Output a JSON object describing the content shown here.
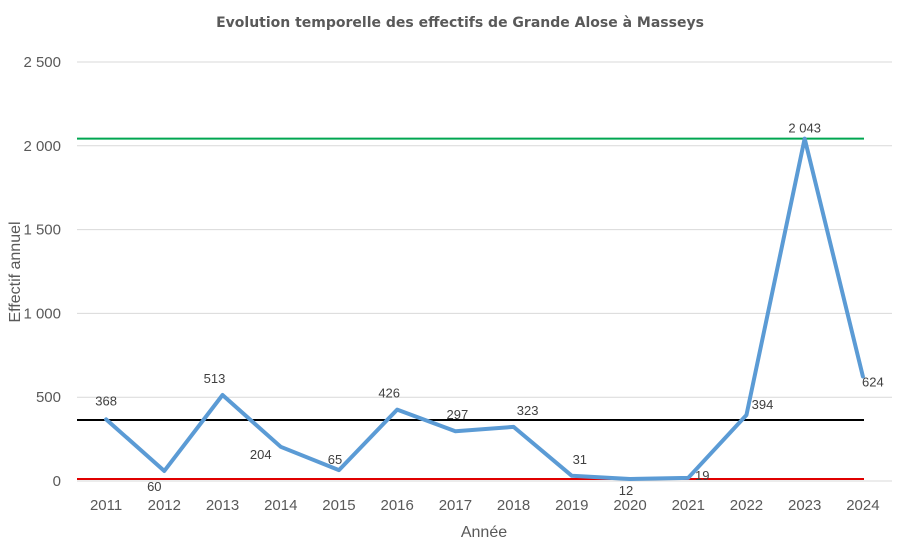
{
  "chart_data": {
    "type": "line",
    "title": "Evolution temporelle des effectifs de Grande Alose à Masseys",
    "xlabel": "Année",
    "ylabel": "Effectif annuel",
    "categories": [
      "2011",
      "2012",
      "2013",
      "2014",
      "2015",
      "2016",
      "2017",
      "2018",
      "2019",
      "2020",
      "2021",
      "2022",
      "2023",
      "2024"
    ],
    "ylim": [
      0,
      2500
    ],
    "yticks": [
      0,
      500,
      1000,
      1500,
      2000,
      2500
    ],
    "ytick_labels": [
      "0",
      "500",
      "1 000",
      "1 500",
      "2 000",
      "2 500"
    ],
    "grid": true,
    "series": [
      {
        "values": [
          368,
          60,
          513,
          204,
          65,
          426,
          297,
          323,
          31,
          12,
          19,
          394,
          2043,
          624
        ],
        "data_labels": [
          "368",
          "60",
          "513",
          "204",
          "65",
          "426",
          "297",
          "323",
          "31",
          "12",
          "19",
          "394",
          "2 043",
          "624"
        ],
        "color": "#5b9bd5"
      }
    ],
    "reference_lines": [
      {
        "value": 2043,
        "color": "#00a651"
      },
      {
        "value": 364,
        "color": "#000000"
      },
      {
        "value": 12,
        "color": "#e00000"
      }
    ]
  }
}
